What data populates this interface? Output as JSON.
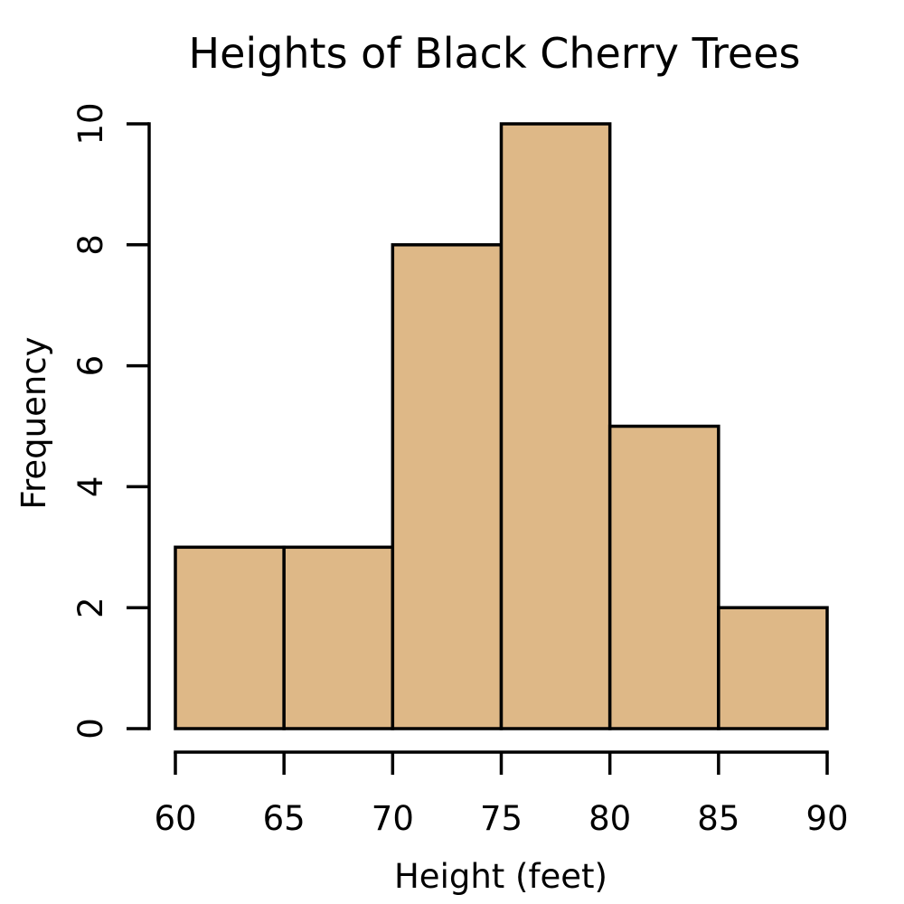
{
  "chart_data": {
    "type": "bar",
    "subtype": "histogram",
    "title": "Heights of Black Cherry Trees",
    "xlabel": "Height (feet)",
    "ylabel": "Frequency",
    "bins": [
      [
        60,
        65
      ],
      [
        65,
        70
      ],
      [
        70,
        75
      ],
      [
        75,
        80
      ],
      [
        80,
        85
      ],
      [
        85,
        90
      ]
    ],
    "values": [
      3,
      3,
      8,
      10,
      5,
      2
    ],
    "xlim": [
      60,
      90
    ],
    "ylim": [
      0,
      10
    ],
    "xticks": [
      60,
      65,
      70,
      75,
      80,
      85,
      90
    ],
    "yticks": [
      0,
      2,
      4,
      6,
      8,
      10
    ],
    "grid": false,
    "bar_color": "#DEB887",
    "edge_color": "#000000"
  }
}
